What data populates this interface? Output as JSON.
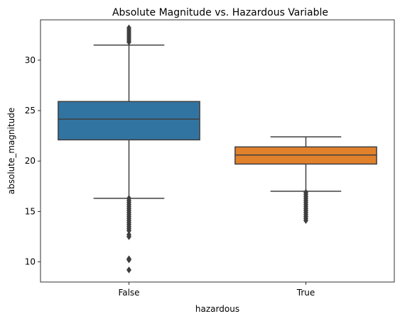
{
  "chart_data": {
    "type": "box",
    "title": "Absolute Magnitude vs. Hazardous Variable",
    "xlabel": "hazardous",
    "ylabel": "absolute_magnitude",
    "ylim": [
      8.0,
      34.0
    ],
    "yticks": [
      10,
      15,
      20,
      25,
      30
    ],
    "categories": [
      "False",
      "True"
    ],
    "grid": false,
    "legend": "none",
    "boxes": [
      {
        "category": "False",
        "color": "#3274a1",
        "whisker_low": 16.3,
        "q1": 22.1,
        "median": 24.15,
        "q3": 25.9,
        "whisker_high": 31.5,
        "outliers": [
          33.2,
          33.0,
          32.8,
          32.6,
          32.4,
          32.2,
          32.0,
          31.8,
          16.3,
          16.1,
          15.9,
          15.7,
          15.5,
          15.3,
          15.1,
          14.9,
          14.7,
          14.5,
          14.3,
          14.1,
          13.9,
          13.7,
          13.5,
          13.3,
          13.1,
          12.7,
          12.5,
          10.3,
          10.2,
          9.2
        ]
      },
      {
        "category": "True",
        "color": "#e1812c",
        "whisker_low": 17.0,
        "q1": 19.7,
        "median": 20.6,
        "q3": 21.4,
        "whisker_high": 22.4,
        "outliers": [
          16.9,
          16.7,
          16.5,
          16.3,
          16.1,
          15.9,
          15.7,
          15.5,
          15.3,
          15.1,
          14.9,
          14.7,
          14.5,
          14.3,
          14.1
        ]
      }
    ]
  }
}
